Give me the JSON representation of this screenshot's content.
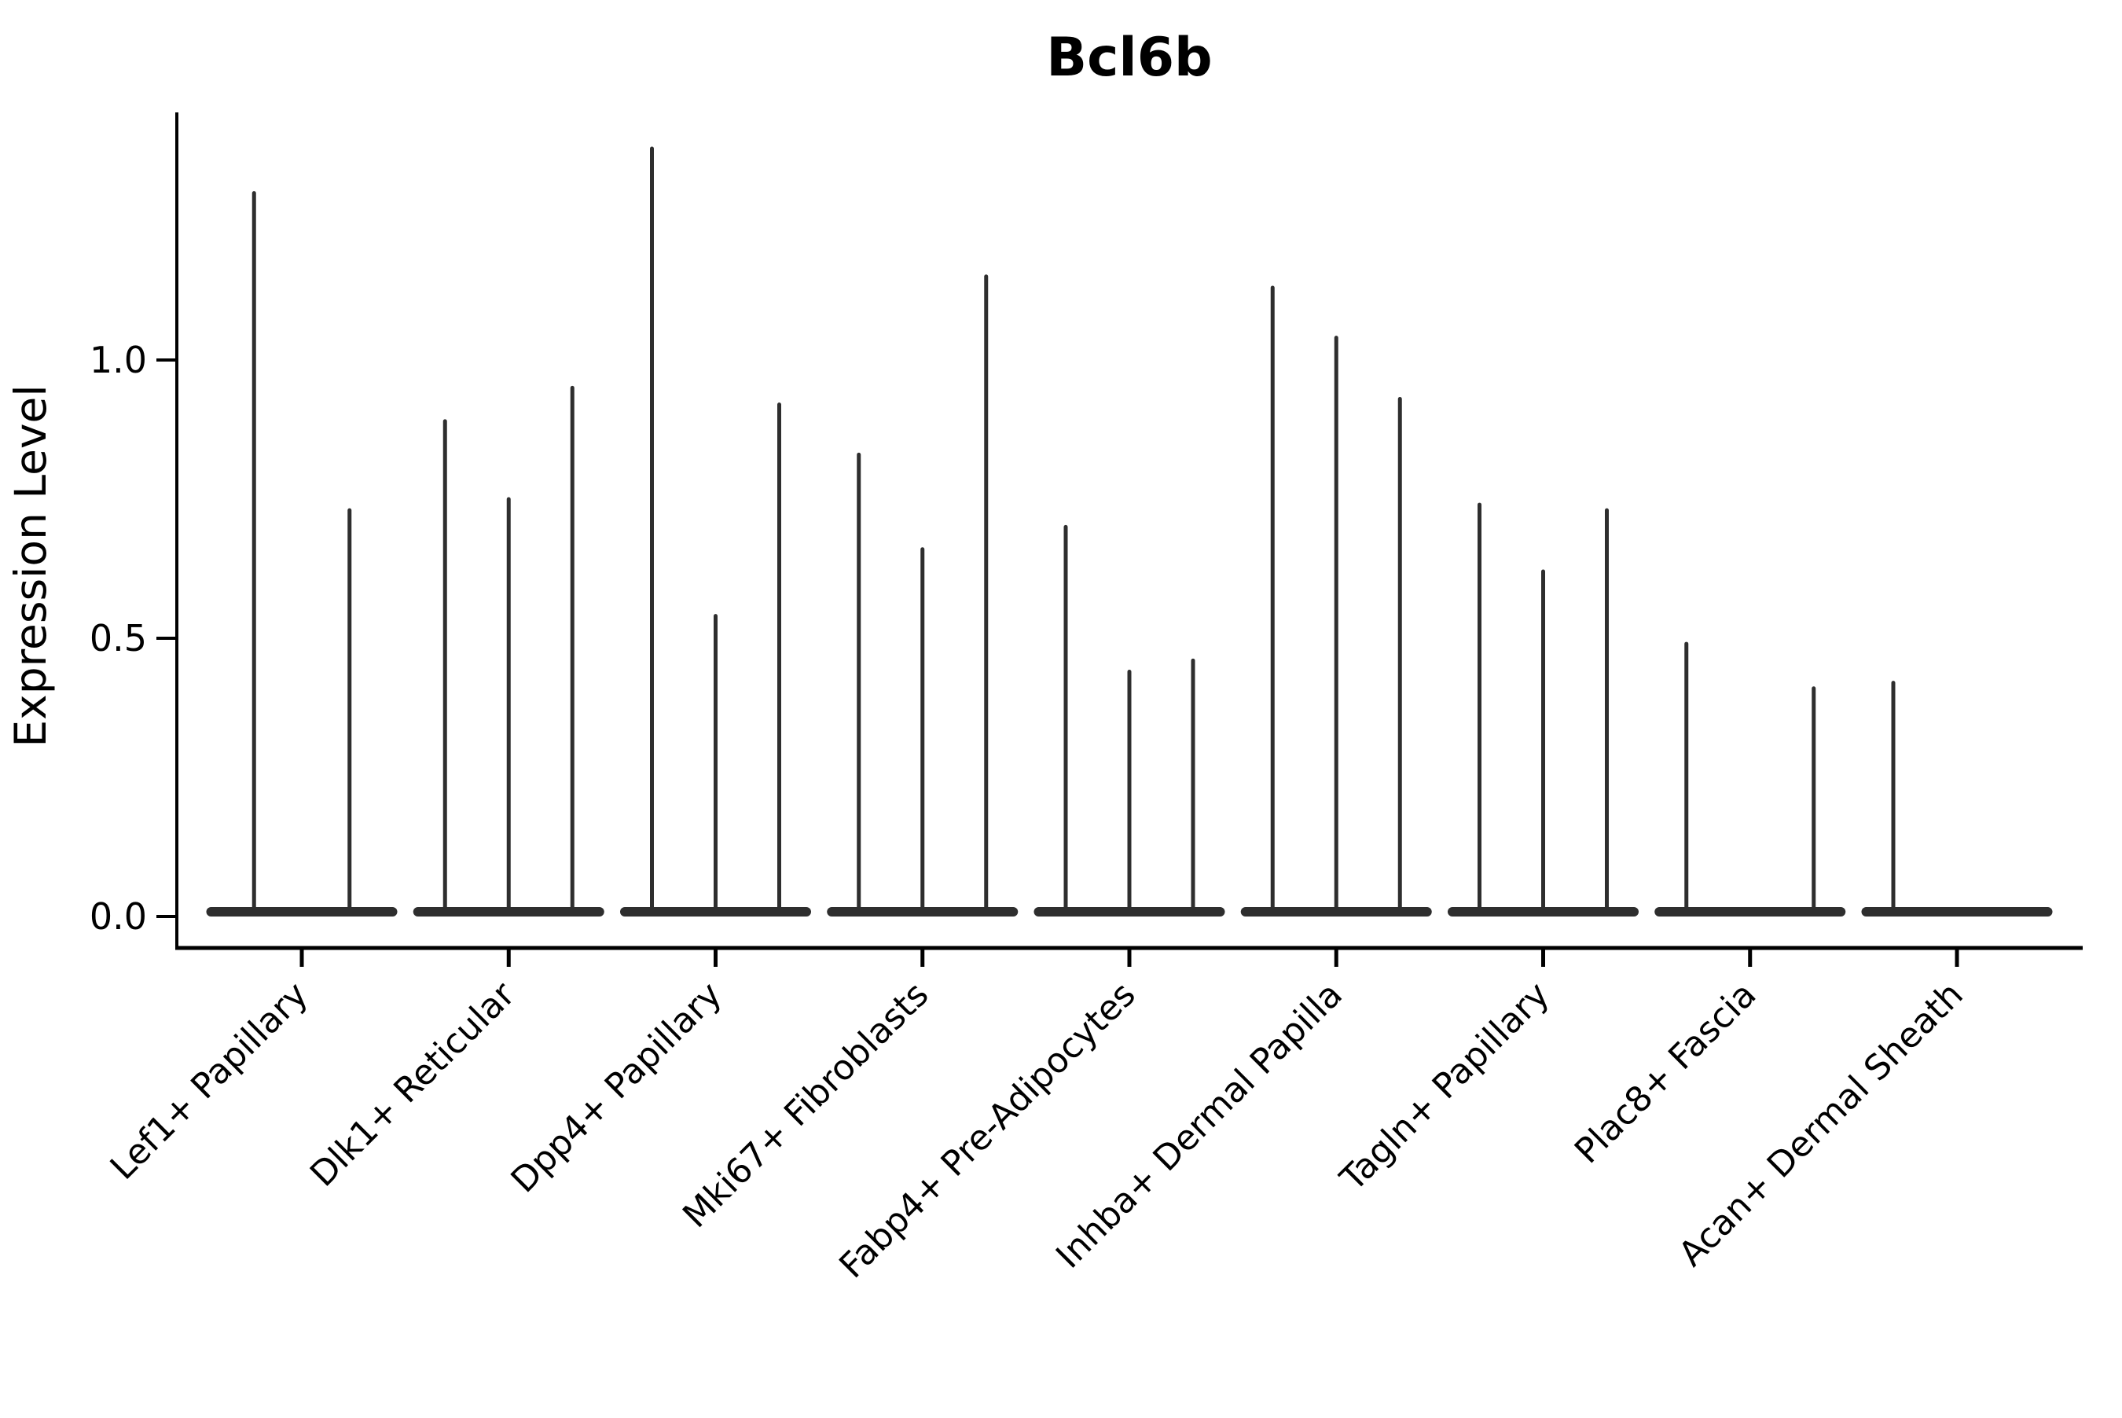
{
  "chart_data": {
    "type": "violin",
    "title": "Bcl6b",
    "xlabel": "",
    "ylabel": "Expression Level",
    "ylim": [
      0,
      1.45
    ],
    "yticks": [
      0.0,
      0.5,
      1.0
    ],
    "ytick_labels": [
      "0.0",
      "0.5",
      "1.0"
    ],
    "grid": "off",
    "legend": "none",
    "violin_color": "#2e2e2e",
    "axis_color": "#000000",
    "categories": [
      "Lef1+ Papillary",
      "Dlk1+ Reticular",
      "Dpp4+ Papillary",
      "Mki67+ Fibroblasts",
      "Fabp4+ Pre-Adipocytes",
      "Inhba+ Dermal Papilla",
      "Tagln+ Papillary",
      "Plac8+ Fascia",
      "Acan+ Dermal Sheath"
    ],
    "groups": [
      {
        "label": "Lef1+ Papillary",
        "violin_maxima": [
          1.3,
          0.73
        ]
      },
      {
        "label": "Dlk1+ Reticular",
        "violin_maxima": [
          0.89,
          0.75,
          0.95
        ]
      },
      {
        "label": "Dpp4+ Papillary",
        "violin_maxima": [
          1.38,
          0.54,
          0.92
        ]
      },
      {
        "label": "Mki67+ Fibroblasts",
        "violin_maxima": [
          0.83,
          0.66,
          1.15
        ]
      },
      {
        "label": "Fabp4+ Pre-Adipocytes",
        "violin_maxima": [
          0.7,
          0.44,
          0.46
        ]
      },
      {
        "label": "Inhba+ Dermal Papilla",
        "violin_maxima": [
          1.13,
          1.04,
          0.93
        ]
      },
      {
        "label": "Tagln+ Papillary",
        "violin_maxima": [
          0.74,
          0.62,
          0.73
        ]
      },
      {
        "label": "Plac8+ Fascia",
        "violin_maxima": [
          0.49,
          0.0,
          0.41
        ]
      },
      {
        "label": "Acan+ Dermal Sheath",
        "violin_maxima": [
          0.42,
          0.0,
          0.0
        ]
      }
    ],
    "description": "Each category shows violins of expression concentrated at 0 with thin tails; violin_maxima are the tail-top expression values (0 = flat violin with no tail)."
  }
}
